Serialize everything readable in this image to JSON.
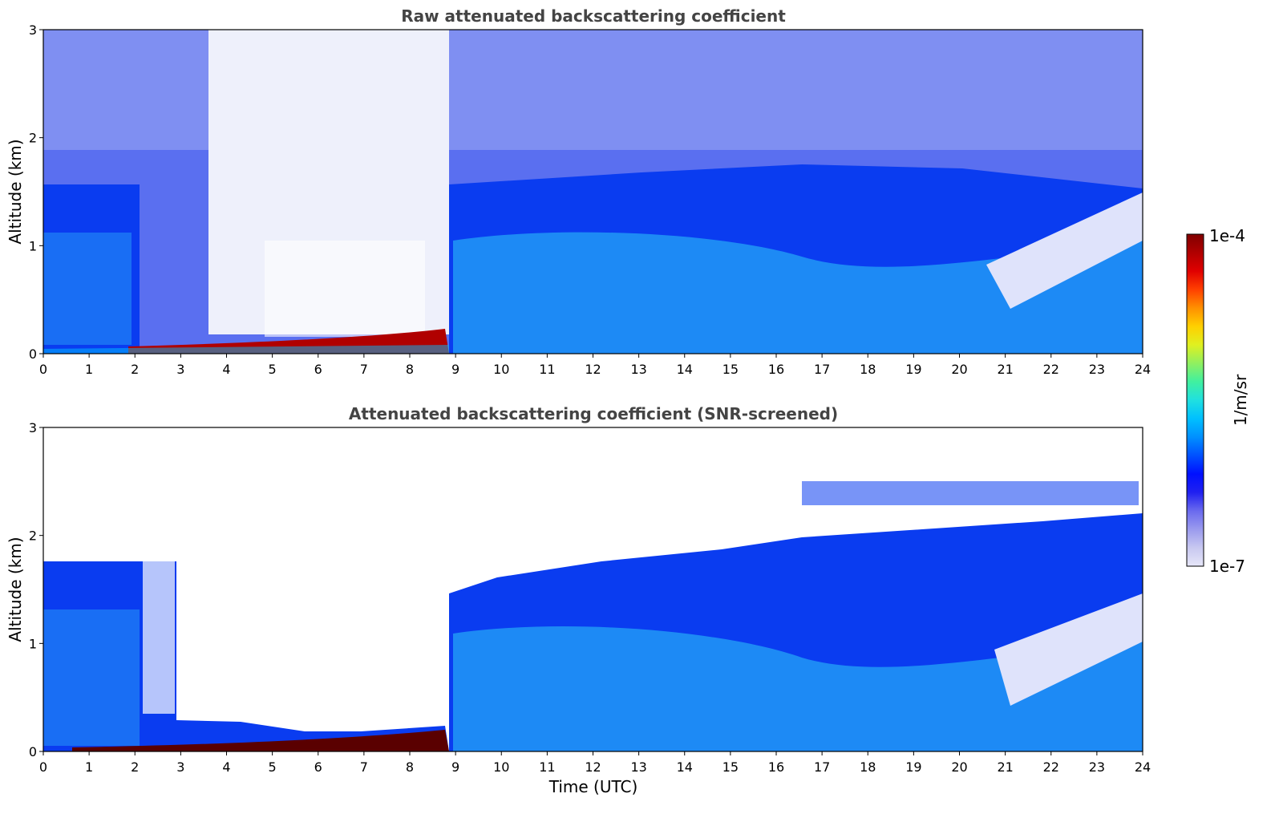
{
  "chart_data": [
    {
      "type": "heatmap",
      "title": "Raw attenuated backscattering coefficient",
      "xlabel": "",
      "ylabel": "Altitude (km)",
      "xlim": [
        0,
        24
      ],
      "ylim": [
        0,
        3
      ],
      "x_ticks": [
        "0",
        "1",
        "2",
        "3",
        "4",
        "5",
        "6",
        "7",
        "8",
        "9",
        "10",
        "11",
        "12",
        "13",
        "14",
        "15",
        "16",
        "17",
        "18",
        "19",
        "20",
        "21",
        "22",
        "23",
        "24"
      ],
      "y_ticks": [
        "0",
        "1",
        "2",
        "3"
      ],
      "description": "Raw lidar signal; noisy background up to 3 km, wide noisy gap 3-9 UTC with strong near-ground layer, bright boundary layer 9-24 UTC",
      "features": {
        "surface_layer": {
          "x_start": 1,
          "x_end": 8.8,
          "top_km": 0.15,
          "level": "high"
        },
        "boundary_layer": {
          "x_start": 8.8,
          "x_end": 24,
          "top_km": [
            1.5,
            1.2,
            1.0
          ],
          "level": "medium"
        },
        "noise_top_km": 3
      },
      "grid": false
    },
    {
      "type": "heatmap",
      "title": "Attenuated backscattering coefficient (SNR-screened)",
      "xlabel": "Time (UTC)",
      "ylabel": "Altitude (km)",
      "xlim": [
        0,
        24
      ],
      "ylim": [
        0,
        3
      ],
      "x_ticks": [
        "0",
        "1",
        "2",
        "3",
        "4",
        "5",
        "6",
        "7",
        "8",
        "9",
        "10",
        "11",
        "12",
        "13",
        "14",
        "15",
        "16",
        "17",
        "18",
        "19",
        "20",
        "21",
        "22",
        "23",
        "24"
      ],
      "y_ticks": [
        "0",
        "1",
        "2",
        "3"
      ],
      "features": {
        "morning_layer_top_km": 1.75,
        "gap_x": [
          2.9,
          8.8
        ],
        "gap_surface_top_km": 0.25,
        "afternoon_layer_top_km": [
          1.4,
          1.75,
          2.0,
          2.2
        ],
        "elevated_layer_km": 2.45
      },
      "grid": false
    }
  ],
  "colorbar": {
    "label": "1/m/sr",
    "max_label": "1e-4",
    "min_label": "1e-7",
    "colors": [
      "#e6e6f8",
      "#c8c8f0",
      "#9a9aee",
      "#6a6aee",
      "#2020f0",
      "#0010ff",
      "#0050ff",
      "#0090ff",
      "#00c0ff",
      "#20e0e0",
      "#40f0a0",
      "#90f060",
      "#e0f020",
      "#ffd000",
      "#ff9000",
      "#ff4000",
      "#e00000",
      "#b00000",
      "#800000"
    ]
  }
}
